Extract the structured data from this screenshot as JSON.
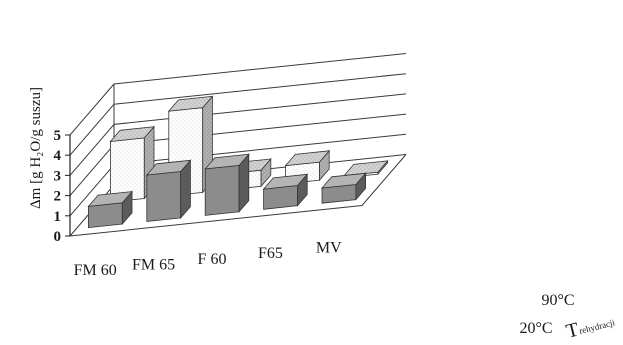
{
  "chart_data": {
    "type": "bar",
    "style": "3d-grouped-bar",
    "title": "",
    "ylabel": "Δm [g H₂O/g suszu]",
    "ylim": [
      0,
      5
    ],
    "yticks": [
      "0",
      "1",
      "2",
      "3",
      "4",
      "5"
    ],
    "grid": true,
    "categories": [
      "FM 60",
      "FM 65",
      "F 60",
      "F65",
      "MV"
    ],
    "depth_axis": {
      "label_main": "T",
      "label_sub": "rehydracji",
      "ticks": [
        "20°C",
        "90°C"
      ]
    },
    "series": [
      {
        "name": "20°C",
        "values": [
          1.05,
          2.3,
          2.3,
          1.0,
          0.75
        ]
      },
      {
        "name": "90°C",
        "values": [
          3.0,
          4.2,
          0.8,
          0.9,
          0.1
        ]
      }
    ],
    "colors": {
      "s20_front": "#8c8c8c",
      "s20_top": "#b4b4b4",
      "s20_side": "#5c5c5c",
      "s90_front": "#ffffff",
      "s90_top": "#cfcfcf",
      "s90_side": "#aeaeae",
      "grid": "#3a3a3a",
      "edge": "#333333"
    }
  }
}
